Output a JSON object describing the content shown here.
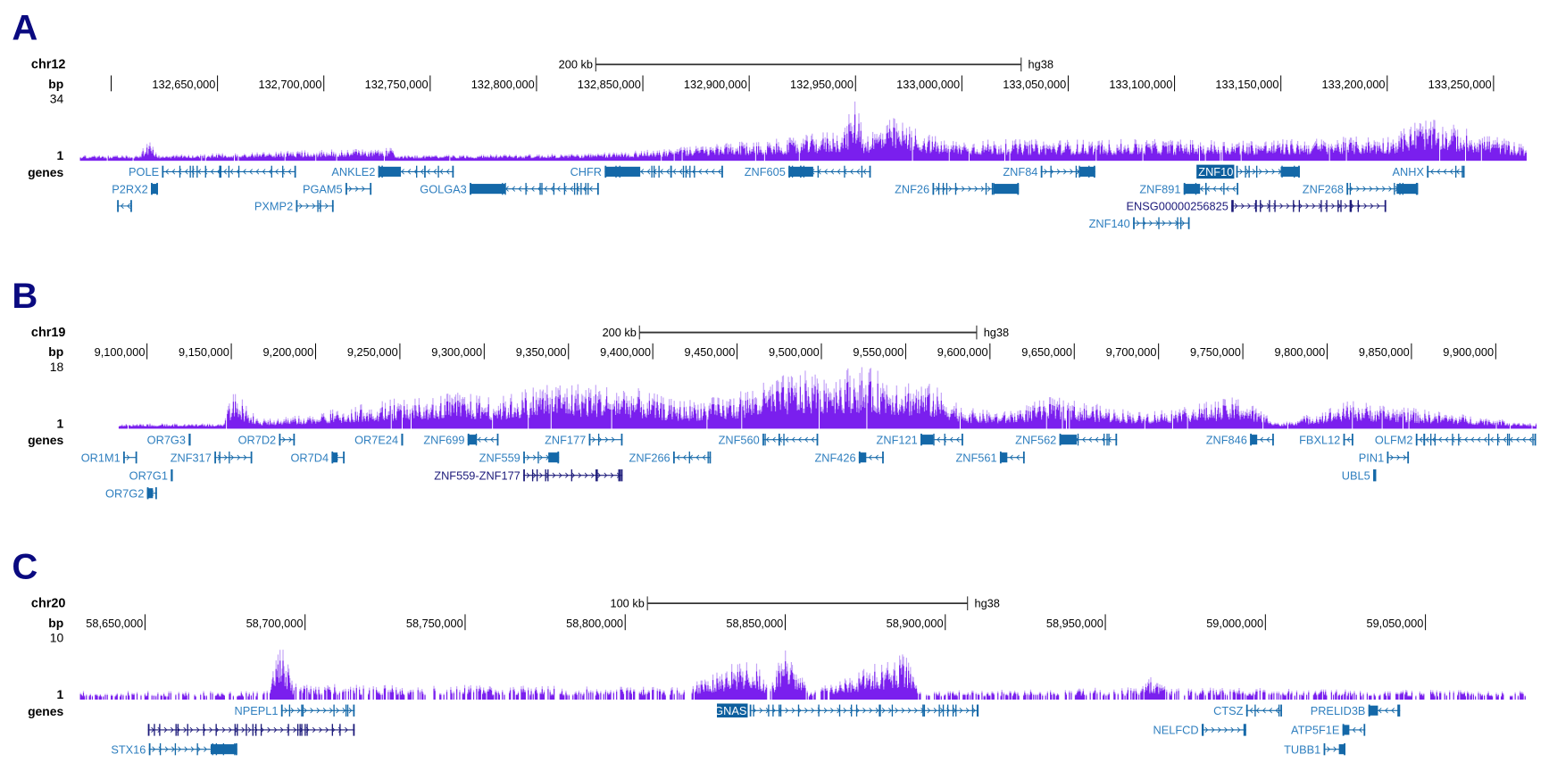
{
  "colors": {
    "coverage_dark": "#7a1fee",
    "coverage_light": "#c3a2f7",
    "gene": "#1468a8",
    "gene_label": "#2f7fbf",
    "gene_alt": "#1c1a7a",
    "highlight_bg": "#0d5f9e",
    "panel_letter": "#0a0a80"
  },
  "panels": [
    {
      "letter": "A",
      "chrom": "chr12",
      "bp_label": "bp",
      "ymax_label": "34",
      "ymax": 34,
      "ymin_label": "1",
      "genes_label": "genes",
      "scalebar": {
        "label": "200 kb",
        "kb": 200,
        "assembly": "hg38"
      },
      "ticks": [
        "132,650,000",
        "132,700,000",
        "132,750,000",
        "132,800,000",
        "132,850,000",
        "132,900,000",
        "132,950,000",
        "133,000,000",
        "133,050,000",
        "133,100,000",
        "133,150,000",
        "133,200,000",
        "133,250,000"
      ],
      "unlabeled_ticks": [
        132600000
      ],
      "coverage_envelope": [
        [
          132585600,
          3
        ],
        [
          132613100,
          3
        ],
        [
          132617800,
          12
        ],
        [
          132622500,
          3
        ],
        [
          132732200,
          7
        ],
        [
          132734500,
          3
        ],
        [
          132827900,
          4
        ],
        [
          132888600,
          9
        ],
        [
          132921300,
          12
        ],
        [
          132944600,
          17
        ],
        [
          132950700,
          34
        ],
        [
          132954000,
          14
        ],
        [
          132968000,
          22
        ],
        [
          132991300,
          11
        ],
        [
          133061300,
          11
        ],
        [
          133122000,
          11
        ],
        [
          133150100,
          11
        ],
        [
          133201400,
          13
        ],
        [
          133215400,
          22
        ],
        [
          133224800,
          20
        ],
        [
          133248100,
          14
        ],
        [
          133265400,
          8
        ]
      ],
      "genes": [
        {
          "name": "POLE",
          "start": 132623900,
          "end": 132686900,
          "strand": "-",
          "row": 0
        },
        {
          "name": "P2RX2",
          "start": 132618700,
          "end": 132622000,
          "strand": "+",
          "row": 1,
          "block": "full"
        },
        {
          "name": "",
          "start": 132602800,
          "end": 132609800,
          "strand": "-",
          "row": 2
        },
        {
          "name": "ANKLE2",
          "start": 132725600,
          "end": 132761100,
          "strand": "-",
          "row": 0,
          "block": "start"
        },
        {
          "name": "PGAM5",
          "start": 132710200,
          "end": 132722400,
          "strand": "+",
          "row": 1
        },
        {
          "name": "PXMP2",
          "start": 132686900,
          "end": 132704600,
          "strand": "+",
          "row": 2
        },
        {
          "name": "GOLGA3",
          "start": 132768600,
          "end": 132829300,
          "strand": "-",
          "row": 1,
          "block": "start"
        },
        {
          "name": "CHFR",
          "start": 132832100,
          "end": 132887700,
          "strand": "-",
          "row": 0,
          "block": "start"
        },
        {
          "name": "ZNF605",
          "start": 132918500,
          "end": 132957200,
          "strand": "-",
          "row": 0,
          "block": "start"
        },
        {
          "name": "ZNF26",
          "start": 132986200,
          "end": 133026800,
          "strand": "+",
          "row": 1,
          "block": "end"
        },
        {
          "name": "ZNF84",
          "start": 133037100,
          "end": 133062700,
          "strand": "+",
          "row": 0,
          "block": "end"
        },
        {
          "name": "ZNF10",
          "start": 133129000,
          "end": 133158900,
          "strand": "+",
          "row": 0,
          "block": "end",
          "highlight": true
        },
        {
          "name": "ZNF891",
          "start": 133104300,
          "end": 133130000,
          "strand": "-",
          "row": 1,
          "block": "start"
        },
        {
          "name": "ZNF268",
          "start": 133180900,
          "end": 133214500,
          "strand": "+",
          "row": 1,
          "block": "end"
        },
        {
          "name": "ANHX",
          "start": 133218700,
          "end": 133236400,
          "strand": "-",
          "row": 0
        },
        {
          "name": "ENSG00000256825",
          "start": 133126700,
          "end": 133199500,
          "strand": "+",
          "row": 2,
          "alt": true
        },
        {
          "name": "ZNF140",
          "start": 133080500,
          "end": 133107100,
          "strand": "+",
          "row": 3
        }
      ]
    },
    {
      "letter": "B",
      "chrom": "chr19",
      "bp_label": "bp",
      "ymax_label": "18",
      "ymax": 18,
      "ymin_label": "1",
      "genes_label": "genes",
      "scalebar": {
        "label": "200 kb",
        "kb": 200,
        "assembly": "hg38"
      },
      "ticks": [
        "9,100,000",
        "9,150,000",
        "9,200,000",
        "9,250,000",
        "9,300,000",
        "9,350,000",
        "9,400,000",
        "9,450,000",
        "9,500,000",
        "9,550,000",
        "9,600,000",
        "9,650,000",
        "9,700,000",
        "9,750,000",
        "9,800,000",
        "9,850,000",
        "9,900,000"
      ],
      "unlabeled_ticks": [],
      "coverage_envelope": [
        [
          9083500,
          2
        ],
        [
          9145300,
          2
        ],
        [
          9151200,
          11
        ],
        [
          9166000,
          3
        ],
        [
          9189500,
          4
        ],
        [
          9254300,
          9
        ],
        [
          9283700,
          10
        ],
        [
          9310200,
          9
        ],
        [
          9336700,
          13
        ],
        [
          9383900,
          12
        ],
        [
          9413300,
          8
        ],
        [
          9442700,
          9
        ],
        [
          9481000,
          15
        ],
        [
          9522200,
          17
        ],
        [
          9566400,
          12
        ],
        [
          9587000,
          6
        ],
        [
          9607600,
          5
        ],
        [
          9637100,
          9
        ],
        [
          9690100,
          5
        ],
        [
          9749000,
          9
        ],
        [
          9772500,
          2
        ],
        [
          9813700,
          8
        ],
        [
          9923900,
          2
        ]
      ],
      "genes": [
        {
          "name": "OR7G3",
          "start": 9124700,
          "end": 9125900,
          "strand": "-",
          "row": 0
        },
        {
          "name": "OR7D2",
          "start": 9178300,
          "end": 9187700,
          "strand": "+",
          "row": 0
        },
        {
          "name": "OR7E24",
          "start": 9250800,
          "end": 9251900,
          "strand": "+",
          "row": 0
        },
        {
          "name": "ZNF699",
          "start": 9290200,
          "end": 9308500,
          "strand": "-",
          "row": 0,
          "block": "start"
        },
        {
          "name": "ZNF177",
          "start": 9362100,
          "end": 9382100,
          "strand": "+",
          "row": 0
        },
        {
          "name": "ZNF560",
          "start": 9465100,
          "end": 9498100,
          "strand": "-",
          "row": 0
        },
        {
          "name": "ZNF121",
          "start": 9558800,
          "end": 9584100,
          "strand": "-",
          "row": 0,
          "block": "start"
        },
        {
          "name": "ZNF562",
          "start": 9641200,
          "end": 9675400,
          "strand": "-",
          "row": 0,
          "block": "start"
        },
        {
          "name": "ZNF846",
          "start": 9754300,
          "end": 9768400,
          "strand": "-",
          "row": 0,
          "block": "start"
        },
        {
          "name": "FBXL12",
          "start": 9809600,
          "end": 9815500,
          "strand": "-",
          "row": 0
        },
        {
          "name": "OLFM2",
          "start": 9852600,
          "end": 9923900,
          "strand": "-",
          "row": 0
        },
        {
          "name": "OR1M1",
          "start": 9085900,
          "end": 9094100,
          "strand": "+",
          "row": 1
        },
        {
          "name": "ZNF317",
          "start": 9140000,
          "end": 9162400,
          "strand": "+",
          "row": 1
        },
        {
          "name": "OR7D4",
          "start": 9209500,
          "end": 9217200,
          "strand": "-",
          "row": 1,
          "block": "start"
        },
        {
          "name": "ZNF559",
          "start": 9323200,
          "end": 9344400,
          "strand": "+",
          "row": 1,
          "block": "end"
        },
        {
          "name": "ZNF266",
          "start": 9412100,
          "end": 9434500,
          "strand": "-",
          "row": 1
        },
        {
          "name": "ZNF426",
          "start": 9522200,
          "end": 9537000,
          "strand": "-",
          "row": 1,
          "block": "start"
        },
        {
          "name": "ZNF561",
          "start": 9605900,
          "end": 9620600,
          "strand": "-",
          "row": 1,
          "block": "start"
        },
        {
          "name": "PIN1",
          "start": 9835500,
          "end": 9848500,
          "strand": "+",
          "row": 1
        },
        {
          "name": "OR7G1",
          "start": 9114100,
          "end": 9115300,
          "strand": "-",
          "row": 2
        },
        {
          "name": "ZNF559-ZNF177",
          "start": 9323200,
          "end": 9382100,
          "strand": "+",
          "row": 2,
          "alt": true
        },
        {
          "name": "UBL5",
          "start": 9827300,
          "end": 9829100,
          "strand": "-",
          "row": 2
        },
        {
          "name": "OR7G2",
          "start": 9100000,
          "end": 9105900,
          "strand": "-",
          "row": 3,
          "block": "start"
        }
      ]
    },
    {
      "letter": "C",
      "chrom": "chr20",
      "bp_label": "bp",
      "ymax_label": "10",
      "ymax": 10,
      "ymin_label": "1",
      "genes_label": "genes",
      "scalebar": {
        "label": "100 kb",
        "kb": 100,
        "assembly": "hg38"
      },
      "ticks": [
        "58,650,000",
        "58,700,000",
        "58,750,000",
        "58,800,000",
        "58,850,000",
        "58,900,000",
        "58,950,000",
        "59,000,000",
        "59,050,000"
      ],
      "unlabeled_ticks": [],
      "coverage_envelope": [
        [
          58629800,
          2
        ],
        [
          58688500,
          2
        ],
        [
          58692200,
          10
        ],
        [
          58696200,
          3
        ],
        [
          58818700,
          2.5
        ],
        [
          58834300,
          6
        ],
        [
          58840500,
          6.5
        ],
        [
          58845100,
          2
        ],
        [
          58849800,
          8.5
        ],
        [
          58852900,
          6.5
        ],
        [
          58857500,
          2
        ],
        [
          58871500,
          4.5
        ],
        [
          58887600,
          7.5
        ],
        [
          58891600,
          2
        ],
        [
          58961400,
          2.5
        ],
        [
          58964500,
          4
        ],
        [
          58969200,
          2.5
        ],
        [
          59081500,
          2
        ]
      ],
      "genes": [
        {
          "name": "NPEPL1",
          "start": 58692500,
          "end": 58715500,
          "strand": "+",
          "row": 0
        },
        {
          "name": "GNAS",
          "start": 58838900,
          "end": 58910300,
          "strand": "+",
          "row": 0,
          "highlight": true
        },
        {
          "name": "CTSZ",
          "start": 58994000,
          "end": 59005200,
          "strand": "-",
          "row": 0
        },
        {
          "name": "PRELID3B",
          "start": 59032200,
          "end": 59042100,
          "strand": "-",
          "row": 0,
          "block": "start"
        },
        {
          "name": "",
          "start": 58650900,
          "end": 58715500,
          "strand": "+",
          "row": 1,
          "alt": true
        },
        {
          "name": "NELFCD",
          "start": 58980100,
          "end": 58994000,
          "strand": "+",
          "row": 1
        },
        {
          "name": "ATP5F1E",
          "start": 59024100,
          "end": 59031200,
          "strand": "-",
          "row": 1,
          "block": "start"
        },
        {
          "name": "STX16",
          "start": 58651200,
          "end": 58678800,
          "strand": "+",
          "row": 2,
          "block": "end"
        },
        {
          "name": "TUBB1",
          "start": 59018200,
          "end": 59025000,
          "strand": "+",
          "row": 2,
          "block": "end"
        }
      ]
    }
  ]
}
